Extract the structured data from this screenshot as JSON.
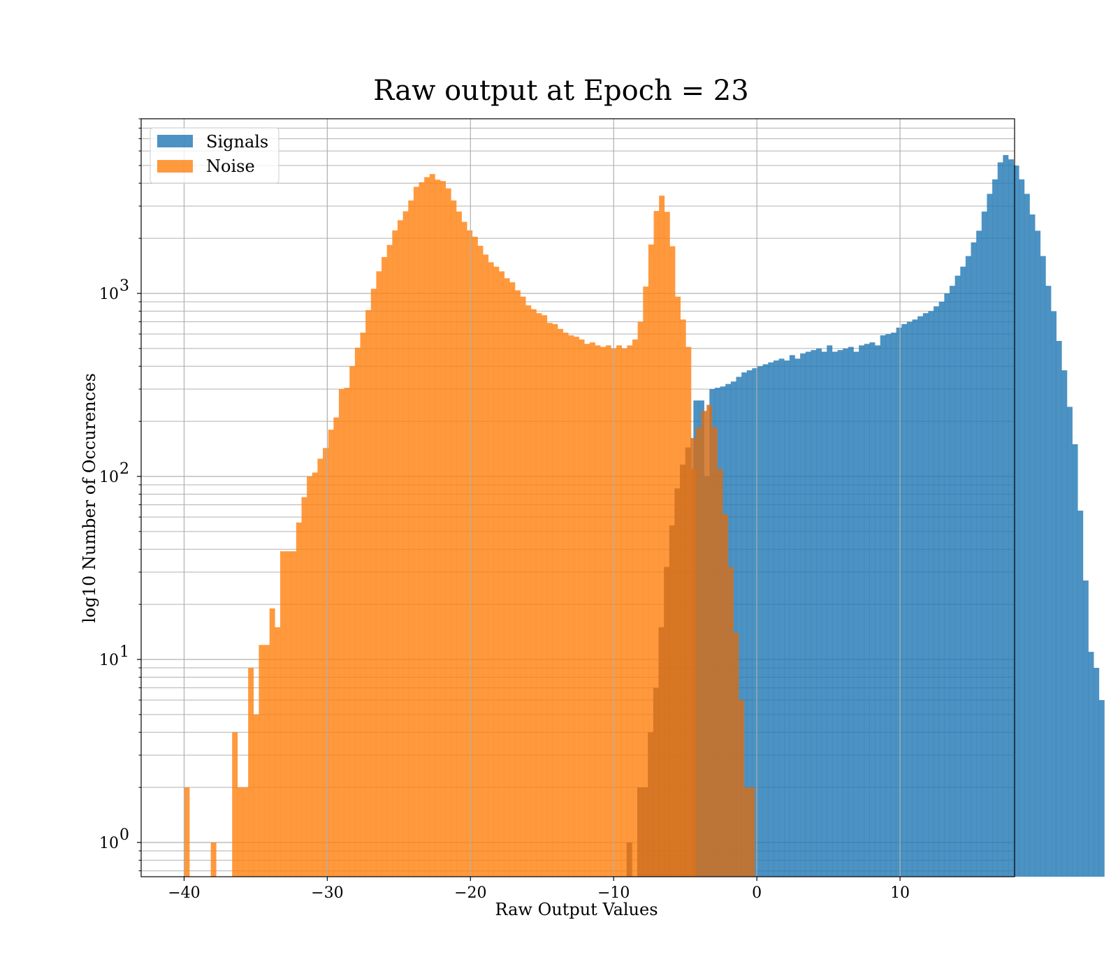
{
  "chart_data": {
    "type": "histogram",
    "title": "Raw output at Epoch = 23",
    "xlabel": "Raw Output Values",
    "ylabel": "log10 Number of Occurences",
    "xlim": [
      -43,
      18
    ],
    "ylim": [
      0.65,
      9000
    ],
    "yscale": "log",
    "grid": true,
    "legend_position": "top-left",
    "x_ticks": [
      -40,
      -30,
      -20,
      -10,
      0,
      10
    ],
    "x_tick_labels": [
      "−40",
      "−30",
      "−20",
      "−10",
      "0",
      "10"
    ],
    "y_ticks": [
      {
        "value": 1,
        "base": "10",
        "exp": "0"
      },
      {
        "value": 10,
        "base": "10",
        "exp": "1"
      },
      {
        "value": 100,
        "base": "10",
        "exp": "2"
      },
      {
        "value": 1000,
        "base": "10",
        "exp": "3"
      }
    ],
    "series": [
      {
        "name": "Signals",
        "color": "#1f77b4",
        "opacity": 0.8,
        "x_start": -4.43,
        "bin_width": 0.3727,
        "counts": [
          260,
          260,
          100,
          300,
          305,
          310,
          320,
          330,
          350,
          370,
          380,
          390,
          400,
          410,
          420,
          430,
          440,
          430,
          460,
          440,
          470,
          480,
          490,
          500,
          480,
          520,
          480,
          490,
          500,
          510,
          480,
          520,
          530,
          540,
          520,
          590,
          600,
          610,
          650,
          680,
          700,
          720,
          750,
          780,
          800,
          850,
          900,
          1000,
          1100,
          1250,
          1400,
          1600,
          1900,
          2200,
          2800,
          3500,
          4200,
          5200,
          5700,
          5400,
          5000,
          4200,
          3500,
          2700,
          2200,
          1600,
          1100,
          800,
          550,
          380,
          240,
          150,
          65,
          27,
          11,
          9,
          6
        ]
      },
      {
        "name": "Noise",
        "color": "#ff7f0e",
        "opacity": 0.8,
        "x_start": -40,
        "bin_width": 0.3727,
        "counts": [
          2,
          0,
          0,
          0,
          0,
          1,
          0,
          0,
          0,
          4,
          2,
          2,
          9,
          5,
          12,
          12,
          19,
          15,
          39,
          39,
          39,
          56,
          77,
          100,
          105,
          125,
          143,
          180,
          210,
          300,
          305,
          400,
          505,
          610,
          810,
          1060,
          1320,
          1580,
          1840,
          2210,
          2510,
          2810,
          3220,
          3820,
          4050,
          4320,
          4490,
          4180,
          4110,
          3750,
          3220,
          2800,
          2460,
          2210,
          2040,
          1820,
          1630,
          1480,
          1400,
          1320,
          1210,
          1150,
          1040,
          960,
          860,
          820,
          780,
          760,
          690,
          680,
          640,
          610,
          590,
          580,
          560,
          530,
          540,
          520,
          510,
          520,
          500,
          520,
          500,
          520,
          560,
          700,
          1090,
          1850,
          2820,
          3420,
          2790,
          1810,
          960,
          720,
          510,
          110,
          0,
          0
        ]
      },
      {
        "name": "",
        "color": "#d07020",
        "opacity": 0.85,
        "x_start": -9.1,
        "bin_width": 0.3727,
        "counts": [
          1,
          0,
          2,
          2,
          4,
          7,
          15,
          32,
          54,
          86,
          116,
          144,
          162,
          185,
          228,
          246,
          185,
          110,
          62,
          32,
          14,
          6,
          2,
          2
        ]
      }
    ]
  }
}
